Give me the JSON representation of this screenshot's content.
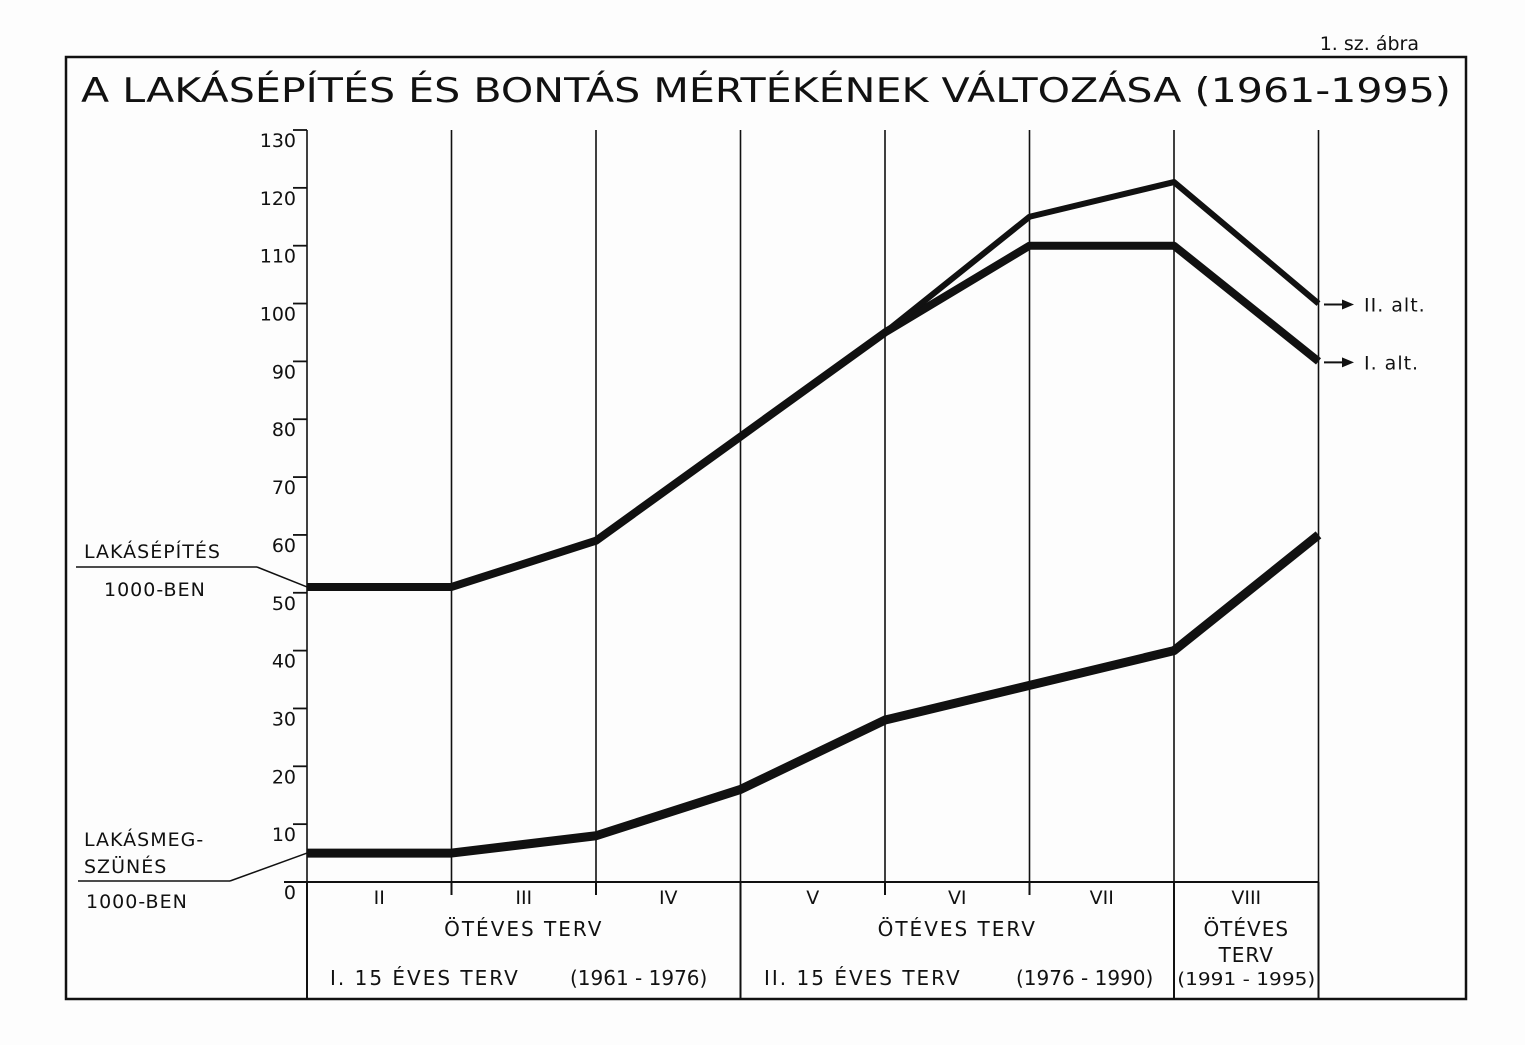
{
  "figure_label": "1. sz. ábra",
  "chart_data": {
    "type": "line",
    "title": "A LAKÁSÉPÍTÉS ÉS BONTÁS MÉRTÉKÉNEK VÁLTOZÁSA (1961-1995)",
    "ylim": [
      0,
      130
    ],
    "yticks": [
      "0",
      "10",
      "20",
      "30",
      "40",
      "50",
      "60",
      "70",
      "80",
      "90",
      "100",
      "110",
      "120",
      "130"
    ],
    "grid": "vertical",
    "x": [
      0,
      1,
      2,
      3,
      4,
      5,
      6,
      7
    ],
    "plans": [
      "II",
      "III",
      "IV",
      "V",
      "VI",
      "VII",
      "VIII"
    ],
    "five_year_label": "ÖTÉVES TERV",
    "five_year_label_viii": [
      "ÖTÉVES",
      "TERV"
    ],
    "fifteen_year": [
      {
        "label": "I. 15 ÉVES TERV",
        "years": "(1961 - 1976)"
      },
      {
        "label": "II. 15 ÉVES TERV",
        "years": "(1976 - 1990)"
      },
      {
        "label": "",
        "years": "(1991 - 1995)"
      }
    ],
    "series": [
      {
        "label_lines": [
          "LAKÁSÉPÍTÉS",
          "1000-BEN"
        ],
        "values": [
          51,
          51,
          59,
          77,
          95,
          110,
          110,
          90
        ],
        "end_label": "I. alt."
      },
      {
        "values": [
          51,
          51,
          59,
          77,
          95,
          115,
          121,
          100
        ],
        "end_label": "II. alt."
      },
      {
        "label_lines": [
          "LAKÁSMEG-",
          "SZÜNÉS",
          "1000-BEN"
        ],
        "values": [
          5,
          5,
          8,
          16,
          28,
          34,
          40,
          60
        ]
      }
    ]
  }
}
